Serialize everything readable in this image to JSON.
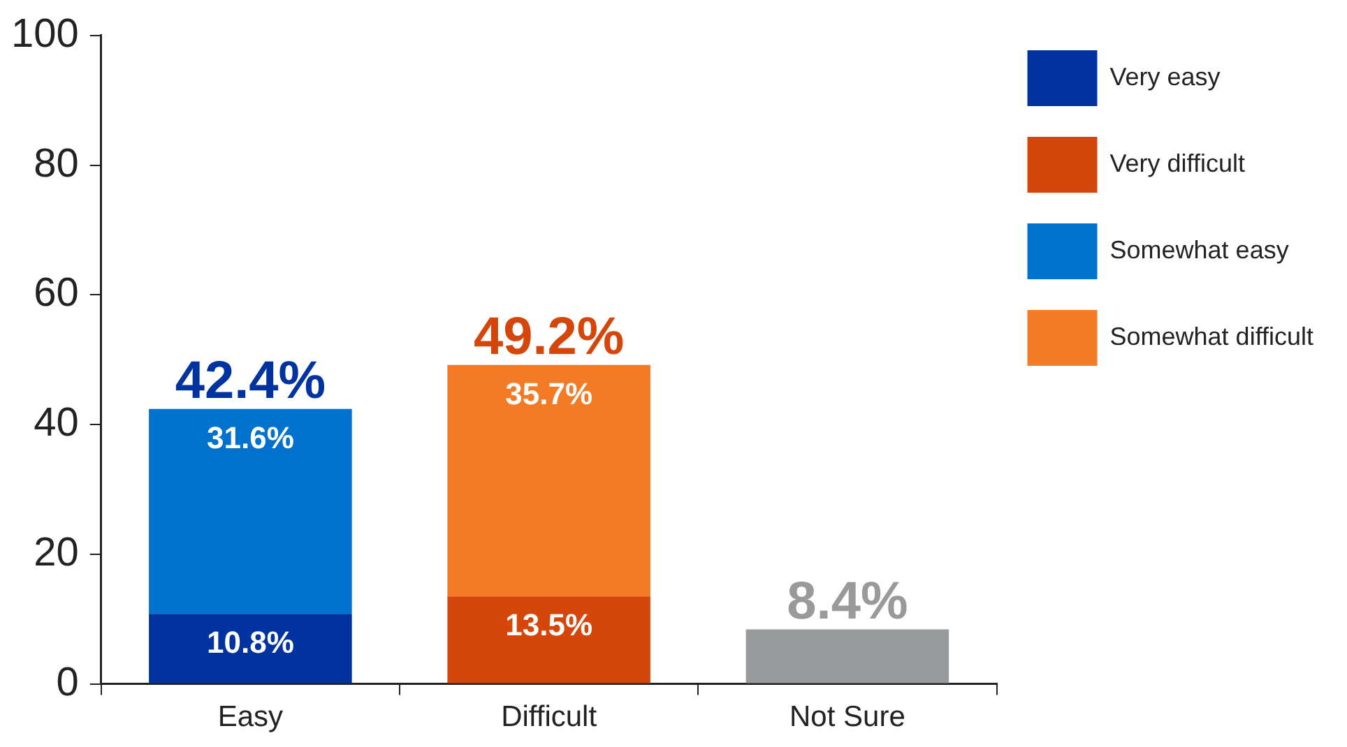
{
  "chart_data": {
    "type": "bar",
    "stacked": true,
    "categories": [
      "Easy",
      "Difficult",
      "Not Sure"
    ],
    "series": [
      {
        "name": "Very easy",
        "color": "#0033a0",
        "values": [
          10.8,
          null,
          null
        ],
        "value_labels": [
          "10.8%",
          null,
          null
        ]
      },
      {
        "name": "Very difficult",
        "color": "#d5460b",
        "values": [
          null,
          13.5,
          null
        ],
        "value_labels": [
          null,
          "13.5%",
          null
        ]
      },
      {
        "name": "Somewhat easy",
        "color": "#0072ce",
        "values": [
          31.6,
          null,
          null
        ],
        "value_labels": [
          "31.6%",
          null,
          null
        ]
      },
      {
        "name": "Somewhat difficult",
        "color": "#f47b25",
        "values": [
          null,
          35.7,
          null
        ],
        "value_labels": [
          null,
          "35.7%",
          null
        ]
      },
      {
        "color": "#999a9c",
        "values": [
          null,
          null,
          8.4
        ]
      }
    ],
    "totals": [
      "42.4%",
      "49.2%",
      "8.4%"
    ],
    "ylim": [
      0,
      100
    ],
    "yticks": [
      0,
      20,
      40,
      60,
      80,
      100
    ],
    "grid": false,
    "legend": "right"
  }
}
